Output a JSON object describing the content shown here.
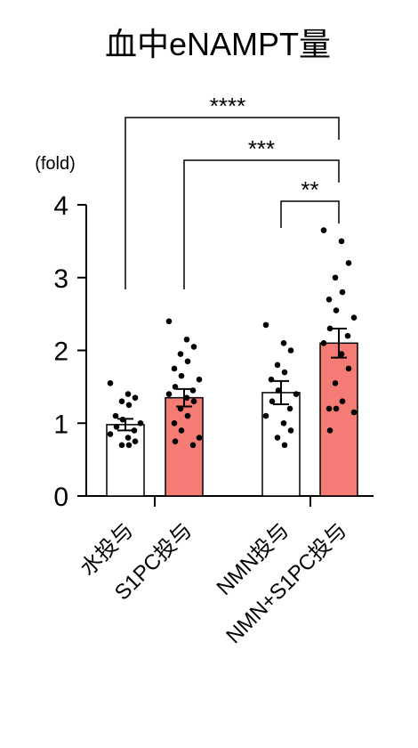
{
  "chart_data": {
    "type": "bar",
    "title": "血中eNAMPT量",
    "y_label": "(fold)",
    "categories": [
      "水投与",
      "S1PC投与",
      "NMN投与",
      "NMN+S1PC投与"
    ],
    "series": [
      {
        "values": [
          0.98,
          1.35,
          1.42,
          2.1
        ],
        "errors": [
          0.08,
          0.12,
          0.16,
          0.2
        ],
        "colors": [
          "#ffffff",
          "#f47c74",
          "#ffffff",
          "#f47c74"
        ]
      }
    ],
    "points": [
      [
        1.55,
        1.4,
        1.35,
        1.3,
        1.25,
        1.1,
        1.05,
        1.0,
        0.95,
        0.9,
        0.85,
        0.8,
        0.75,
        0.7,
        0.7
      ],
      [
        2.4,
        2.15,
        2.05,
        1.95,
        1.85,
        1.75,
        1.65,
        1.6,
        1.5,
        1.45,
        1.4,
        1.35,
        1.3,
        1.2,
        1.1,
        1.0,
        0.9,
        0.8,
        0.75,
        0.7
      ],
      [
        2.35,
        2.1,
        2.0,
        1.8,
        1.7,
        1.6,
        1.45,
        1.4,
        1.3,
        1.2,
        1.1,
        1.0,
        0.9,
        0.8,
        0.7
      ],
      [
        3.65,
        3.5,
        3.2,
        3.0,
        2.8,
        2.7,
        2.55,
        2.45,
        2.3,
        2.2,
        2.1,
        1.95,
        1.75,
        1.55,
        1.3,
        1.2,
        1.2,
        1.15,
        0.9
      ]
    ],
    "brackets": [
      {
        "from": 0,
        "to": 3,
        "label": "****"
      },
      {
        "from": 1,
        "to": 3,
        "label": "***"
      },
      {
        "from": 2,
        "to": 3,
        "label": "**"
      }
    ],
    "ylim": [
      0,
      4
    ],
    "yticks": [
      0,
      1,
      2,
      3,
      4
    ]
  }
}
